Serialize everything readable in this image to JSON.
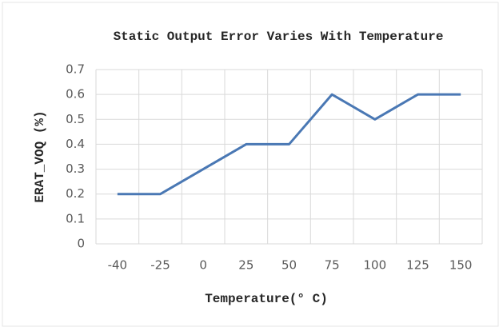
{
  "chart_data": {
    "type": "line",
    "title": "Static Output Error Varies With Temperature",
    "xlabel": "Temperature(° C)",
    "ylabel": "ERAT_VOQ (%)",
    "categories": [
      "-40",
      "-25",
      "0",
      "25",
      "50",
      "75",
      "100",
      "125",
      "150"
    ],
    "values": [
      0.2,
      0.2,
      0.3,
      0.4,
      0.4,
      0.6,
      0.5,
      0.6,
      0.6
    ],
    "color": "#4a78b4",
    "ylim": [
      0,
      0.7
    ],
    "yticks": [
      0,
      0.1,
      0.2,
      0.3,
      0.4,
      0.5,
      0.6,
      0.7
    ],
    "grid": true
  }
}
